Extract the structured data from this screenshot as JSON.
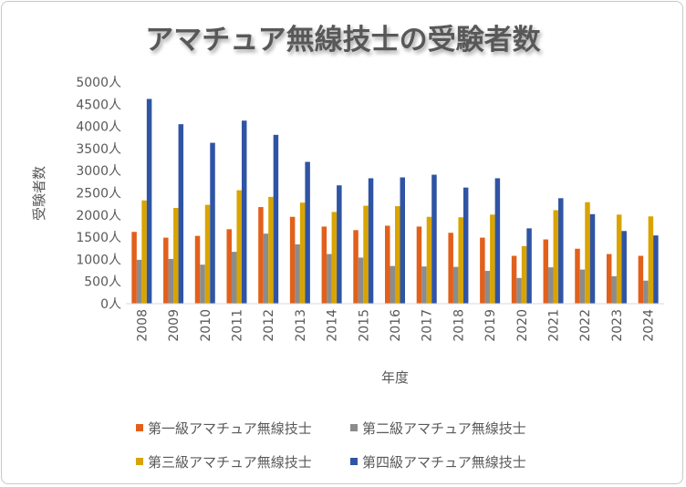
{
  "chart_data": {
    "type": "bar",
    "title": "アマチュア無線技士の受験者数",
    "xlabel": "年度",
    "ylabel": "受験者数",
    "ylim": [
      0,
      5000
    ],
    "ytick_step": 500,
    "y_unit": "人",
    "grid": false,
    "legend_position": "bottom",
    "categories": [
      "2008",
      "2009",
      "2010",
      "2011",
      "2012",
      "2013",
      "2014",
      "2015",
      "2016",
      "2017",
      "2018",
      "2019",
      "2020",
      "2021",
      "2022",
      "2023",
      "2024"
    ],
    "series": [
      {
        "name": "第一級アマチュア無線技士",
        "color": "#e2601b",
        "values": [
          1620,
          1490,
          1530,
          1680,
          2180,
          1960,
          1740,
          1660,
          1760,
          1740,
          1600,
          1490,
          1080,
          1450,
          1240,
          1120,
          1080
        ]
      },
      {
        "name": "第二級アマチュア無線技士",
        "color": "#8c8c8c",
        "values": [
          990,
          1010,
          880,
          1170,
          1580,
          1340,
          1120,
          1040,
          850,
          840,
          830,
          740,
          580,
          820,
          770,
          620,
          520
        ]
      },
      {
        "name": "第三級アマチュア無線技士",
        "color": "#d9a400",
        "values": [
          2330,
          2160,
          2230,
          2560,
          2410,
          2280,
          2070,
          2210,
          2200,
          1960,
          1950,
          2010,
          1300,
          2110,
          2290,
          2010,
          1970
        ]
      },
      {
        "name": "第四級アマチュア無線技士",
        "color": "#3054a4",
        "values": [
          4620,
          4050,
          3630,
          4130,
          3810,
          3200,
          2670,
          2830,
          2850,
          2910,
          2620,
          2830,
          1700,
          2380,
          2020,
          1640,
          1540
        ]
      }
    ]
  }
}
